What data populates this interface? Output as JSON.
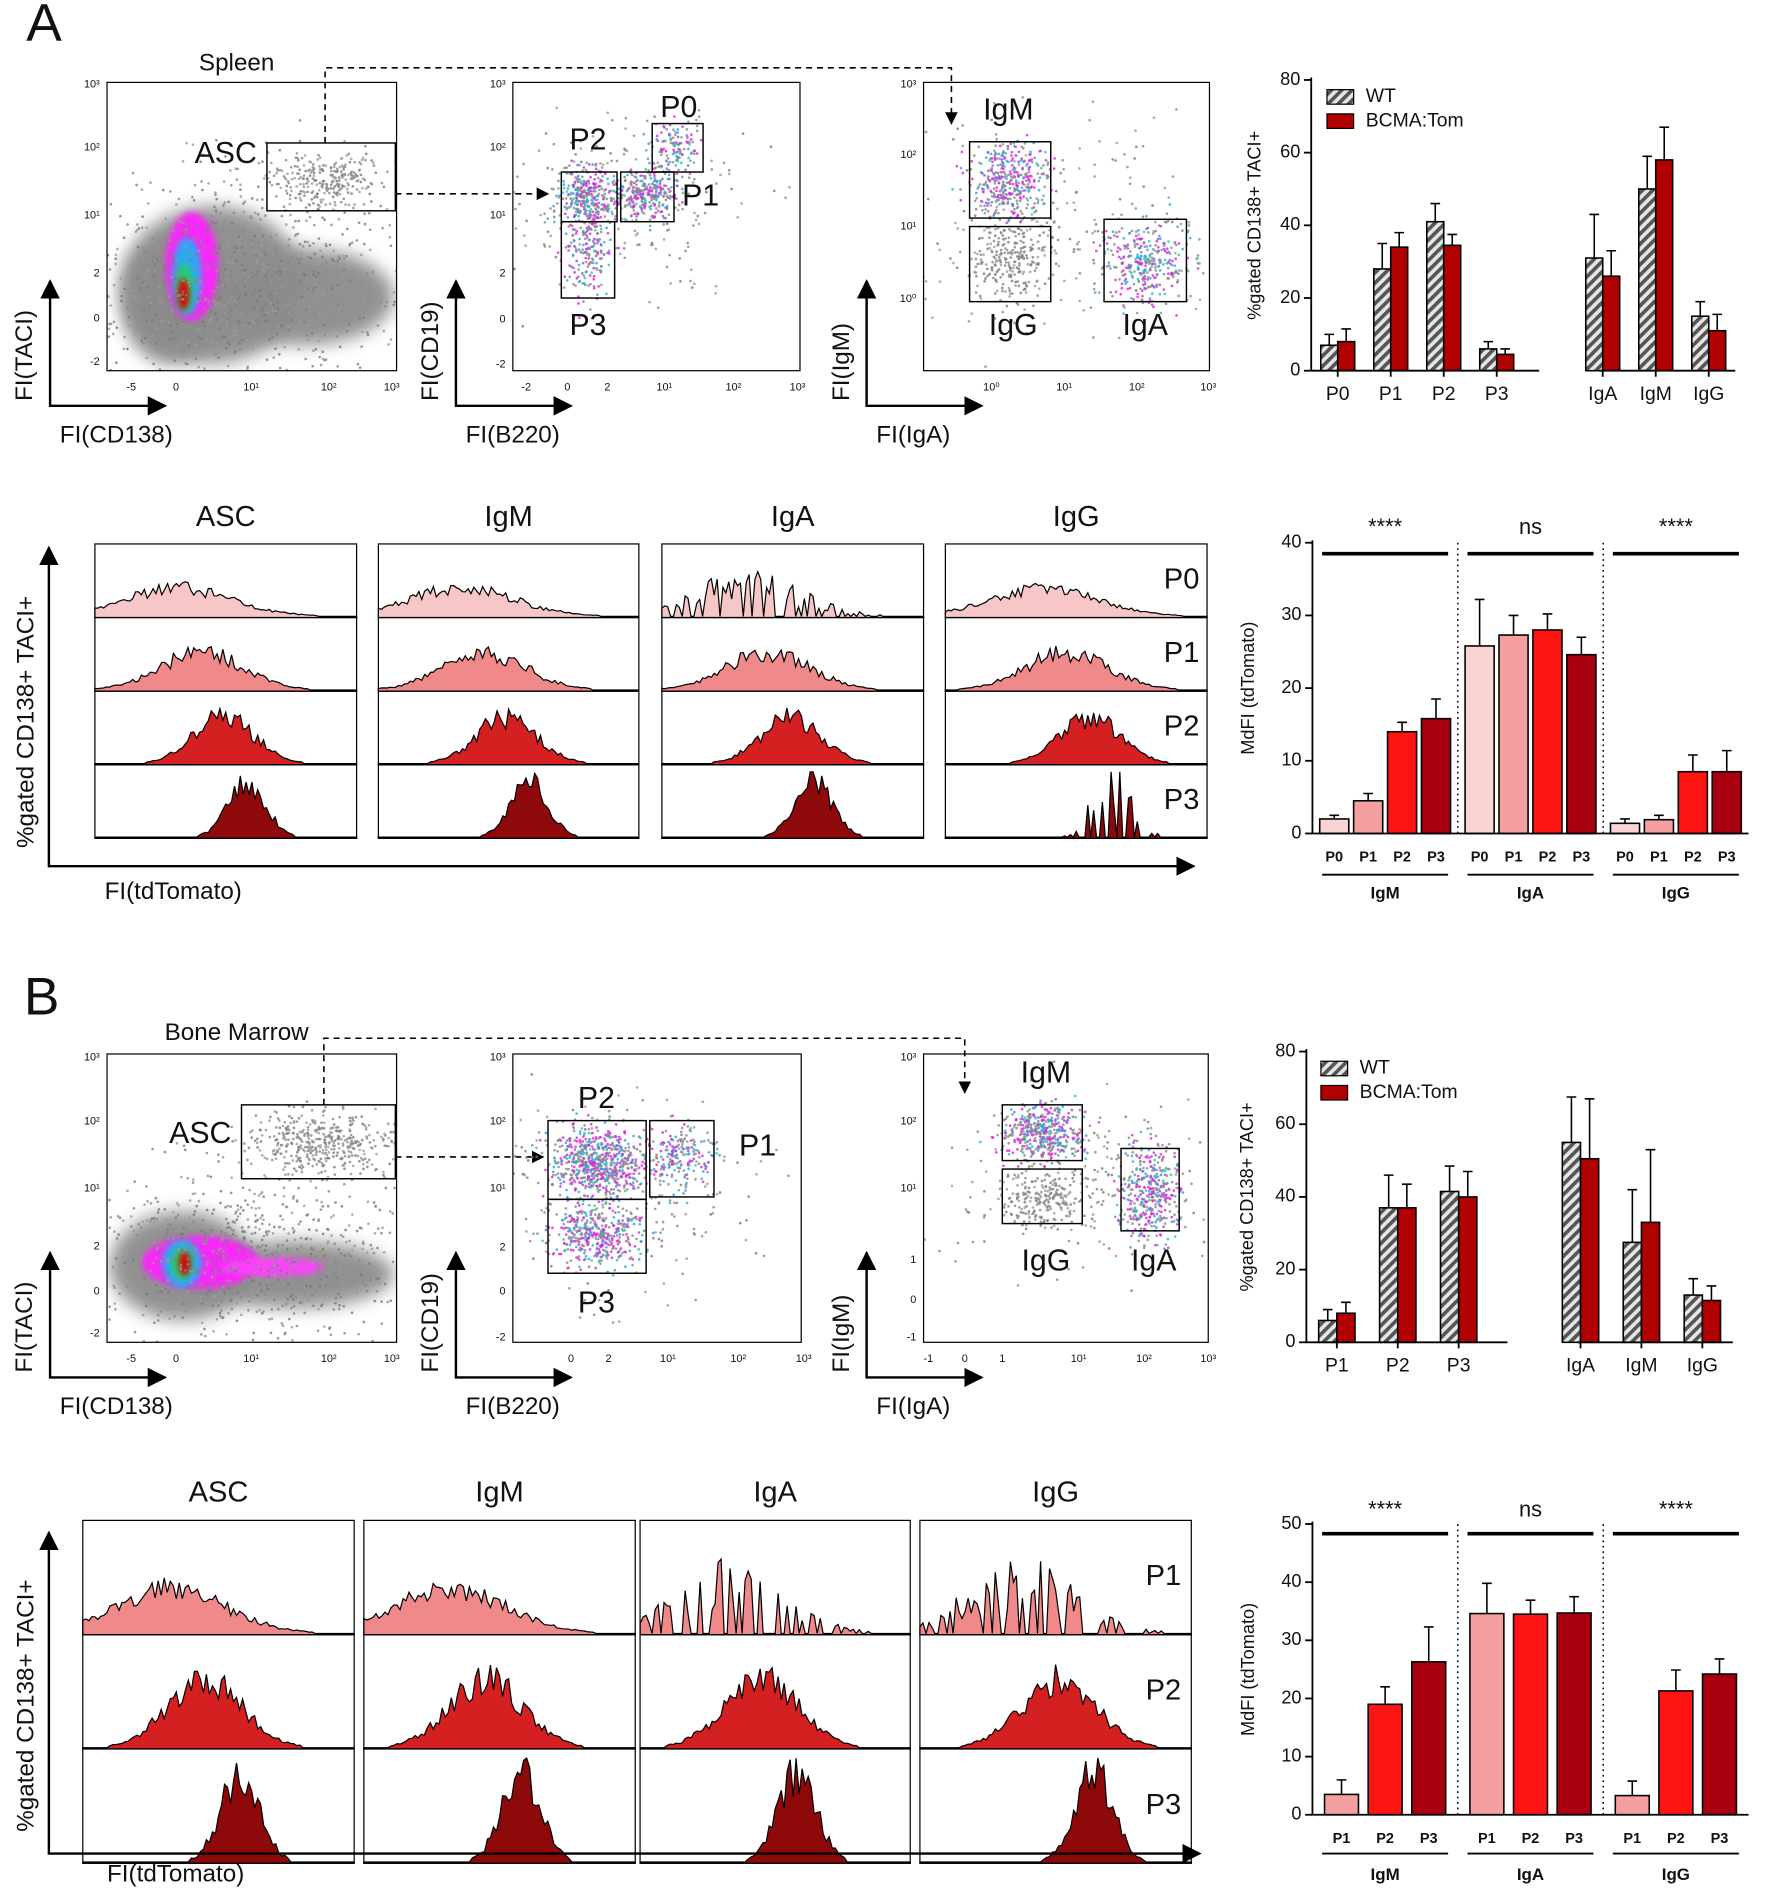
{
  "figure": {
    "panels": [
      {
        "letter": "A",
        "tissue": "Spleen",
        "flow": [
          {
            "xlabel": "FI(CD138)",
            "ylabel": "FI(TACI)",
            "xticks": [
              "-5",
              "0",
              "10¹",
              "10²",
              "10³"
            ],
            "yticks": [
              "10³",
              "10²",
              "10¹",
              "2",
              "0",
              "-2"
            ],
            "gates": [
              "ASC"
            ]
          },
          {
            "xlabel": "FI(B220)",
            "ylabel": "FI(CD19)",
            "xticks": [
              "-2",
              "0",
              "2",
              "10¹",
              "10²",
              "10³"
            ],
            "yticks": [
              "10³",
              "10²",
              "10¹",
              "2",
              "0",
              "-2"
            ],
            "gates": [
              "P0",
              "P2",
              "P1",
              "P3"
            ]
          },
          {
            "xlabel": "FI(IgA)",
            "ylabel": "FI(IgM)",
            "xticks": [
              "10⁰",
              "10¹",
              "10²",
              "10³"
            ],
            "yticks": [
              "10³",
              "10²",
              "10¹",
              "10⁰"
            ],
            "gates": [
              "IgM",
              "IgG",
              "IgA"
            ]
          }
        ],
        "histograms": {
          "columns": [
            "ASC",
            "IgM",
            "IgA",
            "IgG"
          ],
          "rows": [
            "P0",
            "P1",
            "P2",
            "P3"
          ],
          "ylabel": "%gated CD138+ TACI+",
          "xlabel": "FI(tdTomato)"
        }
      },
      {
        "letter": "B",
        "tissue": "Bone Marrow",
        "flow": [
          {
            "xlabel": "FI(CD138)",
            "ylabel": "FI(TACI)",
            "xticks": [
              "-5",
              "0",
              "10¹",
              "10²",
              "10³"
            ],
            "yticks": [
              "10³",
              "10²",
              "10¹",
              "2",
              "0",
              "-2"
            ],
            "gates": [
              "ASC"
            ]
          },
          {
            "xlabel": "FI(B220)",
            "ylabel": "FI(CD19)",
            "xticks": [
              "0",
              "2",
              "10¹",
              "10²",
              "10³"
            ],
            "yticks": [
              "10³",
              "10²",
              "10¹",
              "2",
              "0",
              "-2"
            ],
            "gates": [
              "P2",
              "P1",
              "P3"
            ]
          },
          {
            "xlabel": "FI(IgA)",
            "ylabel": "FI(IgM)",
            "xticks": [
              "-1",
              "0",
              "1",
              "10¹",
              "10²",
              "10³"
            ],
            "yticks": [
              "10³",
              "10²",
              "10¹",
              "1",
              "0",
              "-1"
            ],
            "gates": [
              "IgM",
              "IgG",
              "IgA"
            ]
          }
        ],
        "histograms": {
          "columns": [
            "ASC",
            "IgM",
            "IgA",
            "IgG"
          ],
          "rows": [
            "P1",
            "P2",
            "P3"
          ],
          "ylabel": "%gated CD138+ TACI+",
          "xlabel": "FI(tdTomato)"
        }
      }
    ]
  },
  "chart_data": [
    {
      "type": "bar",
      "ylabel": "%gated CD138+ TACI+",
      "categories": [
        "P0",
        "P1",
        "P2",
        "P3",
        null,
        "IgA",
        "IgM",
        "IgG"
      ],
      "series": [
        {
          "name": "WT",
          "color": "#555555",
          "pattern": "hatch",
          "values": [
            7,
            28,
            41,
            6,
            null,
            31,
            50,
            15
          ],
          "errors": [
            3,
            7,
            5,
            2,
            null,
            12,
            9,
            4
          ]
        },
        {
          "name": "BCMA:Tom",
          "color": "#b00000",
          "values": [
            8,
            34,
            34.5,
            4.5,
            null,
            26,
            58,
            11
          ],
          "errors": [
            3.5,
            4,
            3,
            1.5,
            null,
            7,
            9,
            4.5
          ]
        }
      ],
      "ylim": [
        0,
        80
      ],
      "yticks": [
        0,
        20,
        40,
        60,
        80
      ],
      "legend": "upper left"
    },
    {
      "type": "bar",
      "ylabel": "MdFI (tdTomato)",
      "categories": [
        "IgM",
        "IgA",
        "IgG"
      ],
      "series": [
        {
          "name": "P0",
          "color": "#fbd3d3",
          "values": [
            2,
            25.8,
            1.4
          ],
          "errors": [
            0.5,
            6.4,
            0.6
          ]
        },
        {
          "name": "P1",
          "color": "#f4a0a0",
          "values": [
            4.5,
            27.3,
            1.9
          ],
          "errors": [
            1,
            2.7,
            0.6
          ]
        },
        {
          "name": "P2",
          "color": "#ff1414",
          "values": [
            14,
            28,
            8.5
          ],
          "errors": [
            1.3,
            2.2,
            2.3
          ]
        },
        {
          "name": "P3",
          "color": "#a8000e",
          "values": [
            15.8,
            24.6,
            8.5
          ],
          "errors": [
            2.7,
            2.4,
            2.9
          ]
        }
      ],
      "ylim": [
        0,
        40
      ],
      "yticks": [
        0,
        10,
        20,
        30,
        40
      ],
      "annotations": [
        "****",
        "ns",
        "****"
      ]
    },
    {
      "type": "bar",
      "ylabel": "%gated CD138+ TACI+",
      "categories": [
        "P1",
        "P2",
        "P3",
        null,
        "IgA",
        "IgM",
        "IgG"
      ],
      "series": [
        {
          "name": "WT",
          "color": "#555555",
          "pattern": "hatch",
          "values": [
            6,
            37,
            41.5,
            null,
            55,
            27.5,
            13
          ],
          "errors": [
            3,
            9,
            7,
            null,
            12.5,
            14.5,
            4.5
          ]
        },
        {
          "name": "BCMA:Tom",
          "color": "#b00000",
          "values": [
            8,
            37,
            40,
            null,
            50.5,
            33,
            11.5
          ],
          "errors": [
            3,
            6.5,
            7,
            null,
            16.5,
            20,
            4
          ]
        }
      ],
      "ylim": [
        0,
        80
      ],
      "yticks": [
        0,
        20,
        40,
        60,
        80
      ],
      "legend": "upper left"
    },
    {
      "type": "bar",
      "ylabel": "MdFI (tdTomato)",
      "categories": [
        "IgM",
        "IgA",
        "IgG"
      ],
      "series": [
        {
          "name": "P1",
          "color": "#f4a0a0",
          "values": [
            3.5,
            34.6,
            3.3
          ],
          "errors": [
            2.5,
            5.2,
            2.5
          ]
        },
        {
          "name": "P2",
          "color": "#ff1414",
          "values": [
            19,
            34.5,
            21.3
          ],
          "errors": [
            3,
            2.4,
            3.6
          ]
        },
        {
          "name": "P3",
          "color": "#a8000e",
          "values": [
            26.3,
            34.7,
            24.2
          ],
          "errors": [
            6,
            2.8,
            2.6
          ]
        }
      ],
      "ylim": [
        0,
        50
      ],
      "yticks": [
        0,
        10,
        20,
        30,
        40,
        50
      ],
      "annotations": [
        "****",
        "ns",
        "****"
      ]
    }
  ]
}
